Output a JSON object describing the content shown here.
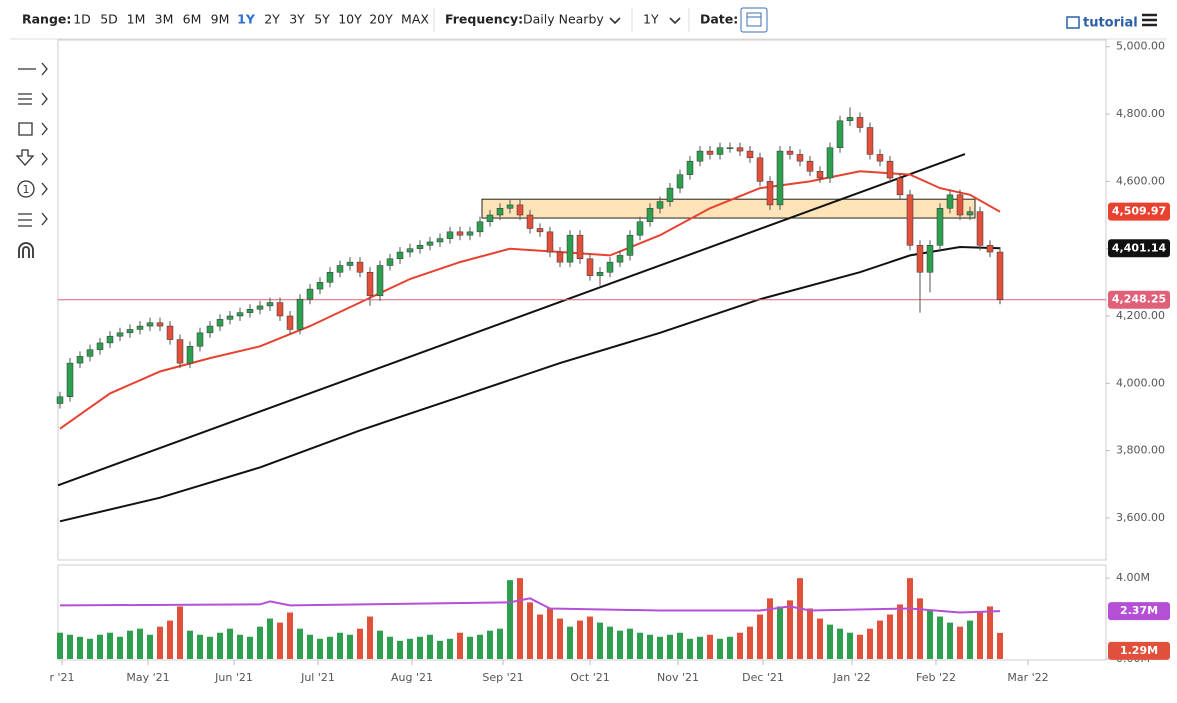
{
  "toolbar": {
    "range_label": "Range:",
    "ranges": [
      "1D",
      "5D",
      "1M",
      "3M",
      "6M",
      "9M",
      "1Y",
      "2Y",
      "3Y",
      "5Y",
      "10Y",
      "20Y",
      "MAX"
    ],
    "frequency_label": "Frequency:",
    "frequency": "Daily Nearby",
    "period": "1Y",
    "date_label": "Date:",
    "tutorial": "tutorial"
  },
  "drawing_tools": {
    "circle_label": "1"
  },
  "chart_data": {
    "type": "candlestick",
    "xlim": [
      -0.2,
      104.6
    ],
    "xticks": [
      {
        "value": 0.2,
        "label": "r '21"
      },
      {
        "value": 8.8,
        "label": "May '21"
      },
      {
        "value": 17.4,
        "label": "Jun '21"
      },
      {
        "value": 25.8,
        "label": "Jul '21"
      },
      {
        "value": 35.2,
        "label": "Aug '21"
      },
      {
        "value": 44.3,
        "label": "Sep '21"
      },
      {
        "value": 53,
        "label": "Oct '21"
      },
      {
        "value": 61.8,
        "label": "Nov '21"
      },
      {
        "value": 70.3,
        "label": "Dec '21"
      },
      {
        "value": 79.2,
        "label": "Jan '22"
      },
      {
        "value": 87.6,
        "label": "Feb '22"
      },
      {
        "value": 96.8,
        "label": "Mar '22"
      }
    ],
    "ylim": [
      3475,
      5020
    ],
    "yticks": [
      {
        "value": 3600,
        "label": "3,600.00"
      },
      {
        "value": 3800,
        "label": "3,800.00"
      },
      {
        "value": 4000,
        "label": "4,000.00"
      },
      {
        "value": 4200,
        "label": "4,200.00"
      },
      {
        "value": 4400,
        "label": "4,400.00"
      },
      {
        "value": 4600,
        "label": "4,600.00"
      },
      {
        "value": 4800,
        "label": "4,800.00"
      },
      {
        "value": 5000,
        "label": "5,000.00"
      }
    ],
    "up_color": "#2e9e4f",
    "down_color": "#e0503a",
    "open": [
      3940,
      3960,
      4060,
      4080,
      4100,
      4120,
      4140,
      4150,
      4160,
      4170,
      4180,
      4170,
      4130,
      4060,
      4110,
      4150,
      4170,
      4190,
      4200,
      4210,
      4220,
      4230,
      4240,
      4200,
      4160,
      4250,
      4280,
      4300,
      4330,
      4350,
      4360,
      4330,
      4260,
      4350,
      4370,
      4390,
      4400,
      4410,
      4420,
      4430,
      4450,
      4440,
      4450,
      4480,
      4500,
      4520,
      4530,
      4500,
      4460,
      4450,
      4390,
      4360,
      4440,
      4370,
      4320,
      4330,
      4360,
      4380,
      4440,
      4480,
      4520,
      4540,
      4580,
      4620,
      4660,
      4690,
      4680,
      4700,
      4700,
      4690,
      4670,
      4600,
      4530,
      4690,
      4680,
      4660,
      4630,
      4610,
      4700,
      4780,
      4790,
      4760,
      4680,
      4660,
      4610,
      4560,
      4410,
      4330,
      4410,
      4520,
      4560,
      4500,
      4510,
      4410,
      4390
    ],
    "high": [
      3975,
      4075,
      4095,
      4115,
      4135,
      4155,
      4165,
      4175,
      4185,
      4195,
      4195,
      4185,
      4145,
      4125,
      4165,
      4185,
      4205,
      4215,
      4225,
      4235,
      4245,
      4255,
      4255,
      4215,
      4265,
      4295,
      4315,
      4345,
      4365,
      4375,
      4375,
      4345,
      4365,
      4385,
      4405,
      4415,
      4425,
      4435,
      4445,
      4465,
      4465,
      4465,
      4495,
      4515,
      4535,
      4545,
      4545,
      4515,
      4475,
      4465,
      4405,
      4455,
      4455,
      4385,
      4345,
      4375,
      4395,
      4455,
      4495,
      4535,
      4555,
      4595,
      4635,
      4675,
      4705,
      4705,
      4715,
      4715,
      4715,
      4705,
      4685,
      4615,
      4705,
      4705,
      4695,
      4675,
      4645,
      4715,
      4795,
      4820,
      4805,
      4775,
      4695,
      4675,
      4625,
      4575,
      4425,
      4425,
      4535,
      4575,
      4575,
      4525,
      4525,
      4425,
      4405
    ],
    "low": [
      3925,
      3945,
      4045,
      4065,
      4085,
      4105,
      4125,
      4135,
      4145,
      4155,
      4155,
      4115,
      4045,
      4045,
      4095,
      4135,
      4155,
      4175,
      4185,
      4195,
      4205,
      4215,
      4185,
      4145,
      4145,
      4235,
      4265,
      4285,
      4315,
      4335,
      4315,
      4230,
      4245,
      4335,
      4355,
      4375,
      4385,
      4395,
      4405,
      4415,
      4425,
      4425,
      4435,
      4465,
      4485,
      4505,
      4485,
      4445,
      4435,
      4375,
      4345,
      4345,
      4355,
      4305,
      4290,
      4315,
      4345,
      4365,
      4425,
      4465,
      4505,
      4525,
      4565,
      4605,
      4645,
      4665,
      4665,
      4685,
      4675,
      4655,
      4585,
      4515,
      4515,
      4665,
      4645,
      4615,
      4595,
      4595,
      4685,
      4765,
      4745,
      4665,
      4645,
      4595,
      4545,
      4395,
      4210,
      4270,
      4395,
      4505,
      4485,
      4485,
      4395,
      4375,
      4235
    ],
    "close": [
      3960,
      4060,
      4080,
      4100,
      4120,
      4140,
      4150,
      4160,
      4170,
      4180,
      4170,
      4130,
      4060,
      4110,
      4150,
      4170,
      4190,
      4200,
      4210,
      4220,
      4230,
      4240,
      4200,
      4160,
      4250,
      4280,
      4300,
      4330,
      4350,
      4360,
      4330,
      4260,
      4350,
      4370,
      4390,
      4400,
      4410,
      4420,
      4430,
      4450,
      4440,
      4450,
      4480,
      4500,
      4520,
      4530,
      4500,
      4460,
      4450,
      4390,
      4360,
      4440,
      4370,
      4320,
      4330,
      4360,
      4380,
      4440,
      4480,
      4520,
      4540,
      4580,
      4620,
      4660,
      4690,
      4680,
      4700,
      4700,
      4690,
      4670,
      4600,
      4530,
      4690,
      4680,
      4660,
      4630,
      4610,
      4700,
      4780,
      4790,
      4760,
      4680,
      4660,
      4610,
      4560,
      4410,
      4330,
      4410,
      4520,
      4560,
      4500,
      4510,
      4410,
      4390,
      4248.25
    ],
    "lines": [
      {
        "color": "#e8412f",
        "x": [
          0,
          5,
          10,
          15,
          20,
          25,
          30,
          35,
          40,
          45,
          50,
          55,
          60,
          65,
          70,
          75,
          80,
          85,
          88,
          91,
          94
        ],
        "values": [
          3865,
          3970,
          4035,
          4075,
          4110,
          4170,
          4240,
          4310,
          4360,
          4400,
          4390,
          4380,
          4440,
          4520,
          4580,
          4600,
          4630,
          4620,
          4580,
          4560,
          4509.97
        ],
        "last_label": "4,509.97"
      },
      {
        "color": "#111111",
        "x": [
          0,
          10,
          20,
          30,
          40,
          50,
          60,
          70,
          80,
          85,
          90,
          94
        ],
        "values": [
          3590,
          3660,
          3750,
          3860,
          3960,
          4060,
          4150,
          4250,
          4330,
          4380,
          4405,
          4401.14
        ],
        "last_label": "4,401.14"
      }
    ],
    "trendline": {
      "color": "#111111",
      "x": [
        -0.2,
        90.5
      ],
      "values": [
        3697,
        4681
      ]
    },
    "zone": {
      "x": [
        42.2,
        91.5
      ],
      "values": [
        4491,
        4547
      ],
      "color": "#fde3b8"
    },
    "price_line": {
      "value": 4248.25,
      "label": "4,248.25",
      "color": "#e0607a"
    },
    "volume": {
      "ylim": [
        0,
        4.6
      ],
      "yticks": [
        {
          "value": 0,
          "label": "0.00M"
        },
        {
          "value": 4,
          "label": "4.00M"
        }
      ],
      "values": [
        1.3,
        1.2,
        1.1,
        1.0,
        1.2,
        1.3,
        1.1,
        1.4,
        1.5,
        1.2,
        1.6,
        1.9,
        2.6,
        1.4,
        1.2,
        1.1,
        1.3,
        1.5,
        1.2,
        1.1,
        1.6,
        2.0,
        1.8,
        2.3,
        1.5,
        1.2,
        1.0,
        1.1,
        1.3,
        1.2,
        1.5,
        2.1,
        1.4,
        1.1,
        0.9,
        1.0,
        1.1,
        1.2,
        0.9,
        1.0,
        1.3,
        1.1,
        1.2,
        1.4,
        1.5,
        3.9,
        4.0,
        2.8,
        2.2,
        2.5,
        2.0,
        1.6,
        1.9,
        2.1,
        1.8,
        1.6,
        1.4,
        1.5,
        1.3,
        1.2,
        1.1,
        1.2,
        1.3,
        1.0,
        1.1,
        1.2,
        1.0,
        1.1,
        1.3,
        1.6,
        2.2,
        3.0,
        2.6,
        2.9,
        4.0,
        2.5,
        2.0,
        1.7,
        1.5,
        1.3,
        1.2,
        1.5,
        1.9,
        2.2,
        2.7,
        4.0,
        3.0,
        2.4,
        2.1,
        1.8,
        1.6,
        1.9,
        2.3,
        2.6,
        1.29
      ],
      "last_label": "1.29M",
      "ma_color": "#b44fd6",
      "ma": {
        "x": [
          0,
          20,
          21,
          23,
          45,
          47,
          49,
          60,
          70,
          73,
          75,
          85,
          90,
          94
        ],
        "values": [
          2.65,
          2.7,
          2.85,
          2.65,
          2.8,
          3.0,
          2.5,
          2.4,
          2.4,
          2.6,
          2.4,
          2.5,
          2.3,
          2.37
        ],
        "last_label": "2.37M"
      }
    }
  }
}
